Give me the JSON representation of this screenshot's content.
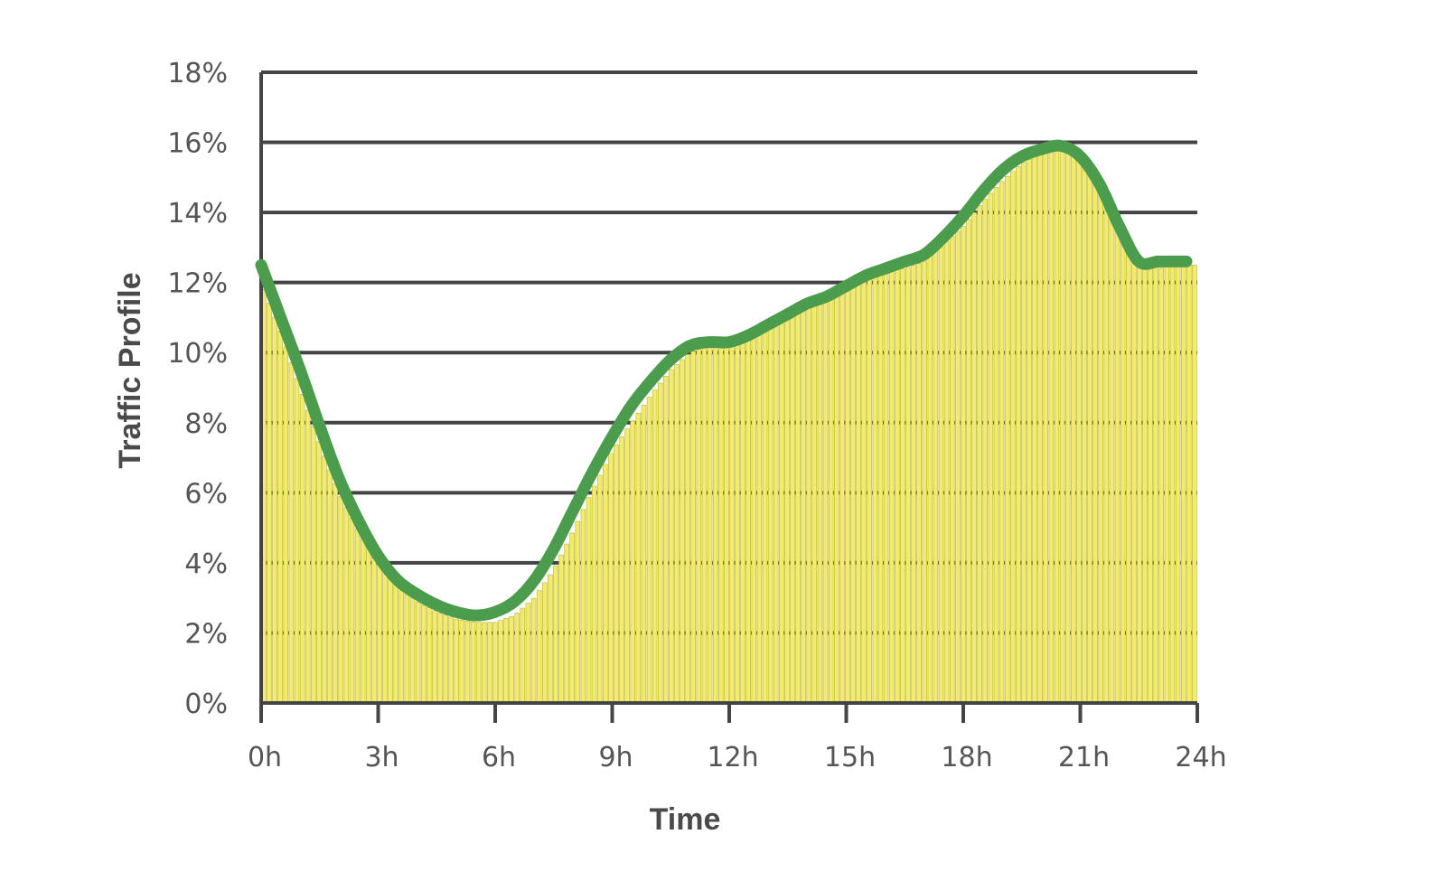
{
  "chart_data": {
    "type": "bar",
    "title": "",
    "xlabel": "Time",
    "ylabel": "Traffic Profile",
    "xlim": [
      0,
      24
    ],
    "ylim": [
      0,
      18
    ],
    "x_unit": "h",
    "y_unit": "%",
    "x_ticks": [
      "0h",
      "3h",
      "6h",
      "9h",
      "12h",
      "15h",
      "18h",
      "21h",
      "24h"
    ],
    "y_ticks": [
      "0%",
      "2%",
      "4%",
      "6%",
      "8%",
      "10%",
      "12%",
      "14%",
      "16%",
      "18%"
    ],
    "grid": true,
    "series": [
      {
        "type": "bar",
        "color": "#f3ec6a",
        "x": [
          0,
          0.5,
          1,
          1.5,
          2,
          2.5,
          3,
          3.5,
          4,
          4.5,
          5,
          5.5,
          6,
          6.5,
          7,
          7.5,
          8,
          8.5,
          9,
          9.5,
          10,
          10.5,
          11,
          11.5,
          12,
          12.5,
          13,
          13.5,
          14,
          14.5,
          15,
          15.5,
          16,
          16.5,
          17,
          17.5,
          18,
          18.5,
          19,
          19.5,
          20,
          20.5,
          21,
          21.5,
          22,
          22.5,
          23,
          23.5,
          24
        ],
        "values": [
          12.0,
          10.6,
          9.0,
          7.4,
          6.0,
          4.9,
          4.0,
          3.3,
          2.9,
          2.6,
          2.4,
          2.3,
          2.3,
          2.5,
          3.0,
          3.8,
          4.9,
          6.1,
          7.2,
          8.0,
          8.8,
          9.5,
          10.0,
          10.2,
          10.2,
          10.4,
          10.7,
          11.0,
          11.3,
          11.5,
          11.8,
          12.1,
          12.3,
          12.4,
          12.6,
          13.1,
          13.6,
          14.3,
          14.9,
          15.4,
          15.7,
          15.8,
          15.6,
          14.8,
          13.6,
          12.5,
          12.4,
          12.5,
          12.5
        ]
      },
      {
        "type": "line",
        "color": "#4c9c4e",
        "x": [
          0,
          0.5,
          1,
          1.5,
          2,
          2.5,
          3,
          3.5,
          4,
          4.5,
          5,
          5.5,
          6,
          6.5,
          7,
          7.5,
          8,
          8.5,
          9,
          9.5,
          10,
          10.5,
          11,
          11.5,
          12,
          12.5,
          13,
          13.5,
          14,
          14.5,
          15,
          15.5,
          16,
          16.5,
          17,
          17.5,
          18,
          18.5,
          19,
          19.5,
          20,
          20.5,
          21,
          21.5,
          22,
          22.5,
          23,
          23.5,
          24
        ],
        "values": [
          12.5,
          11.0,
          9.5,
          7.9,
          6.4,
          5.2,
          4.2,
          3.5,
          3.1,
          2.8,
          2.6,
          2.5,
          2.6,
          2.9,
          3.5,
          4.4,
          5.5,
          6.6,
          7.6,
          8.5,
          9.2,
          9.8,
          10.2,
          10.3,
          10.3,
          10.5,
          10.8,
          11.1,
          11.4,
          11.6,
          11.9,
          12.2,
          12.4,
          12.6,
          12.8,
          13.3,
          13.9,
          14.6,
          15.2,
          15.6,
          15.8,
          15.9,
          15.6,
          14.8,
          13.6,
          12.6,
          12.6,
          12.6,
          12.6
        ]
      }
    ]
  }
}
